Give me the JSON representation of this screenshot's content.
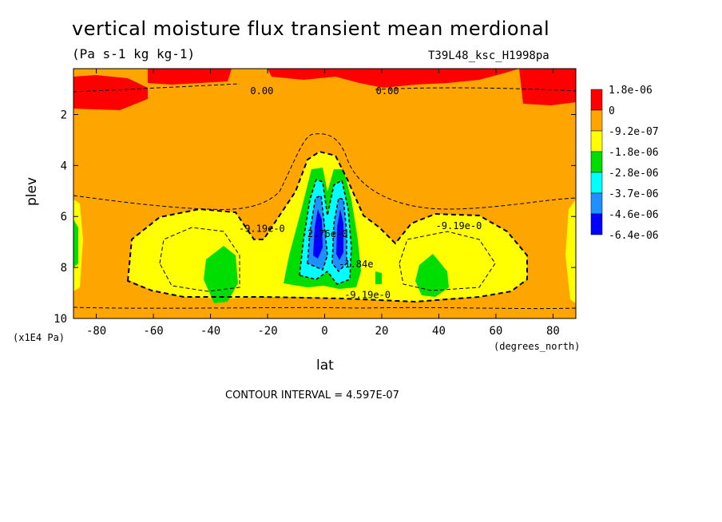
{
  "chart_data": {
    "type": "heatmap",
    "title": "vertical moisture flux transient mean merdional",
    "subtitle": "(Pa s-1 kg kg-1)",
    "run_label": "T39L48_ksc_H1998pa",
    "xlabel": "lat",
    "x_units": "(degrees_north)",
    "ylabel": "plev",
    "y_units": "(x1E4 Pa)",
    "xlim": [
      -88,
      88
    ],
    "ylim": [
      10,
      0.2
    ],
    "x_ticks": [
      -80,
      -60,
      -40,
      -20,
      0,
      20,
      40,
      60,
      80
    ],
    "x_tick_labels": [
      "-80",
      "-60",
      "-40",
      "-20",
      "0",
      "20",
      "40",
      "60",
      "80"
    ],
    "y_ticks": [
      2,
      4,
      6,
      8,
      10
    ],
    "y_tick_labels": [
      "2",
      "4",
      "6",
      "8",
      "10"
    ],
    "contour_interval_label": "CONTOUR INTERVAL = 4.597E-07",
    "legend": {
      "placement": "right",
      "labels": [
        "1.8e-06",
        "0",
        "-9.2e-07",
        "-1.8e-06",
        "-2.8e-06",
        "-3.7e-06",
        "-4.6e-06",
        "-6.4e-06"
      ],
      "colors": [
        "#ff0000",
        "#ffa500",
        "#ffff00",
        "#00dd00",
        "#00ffff",
        "#1e90ff",
        "#0000ff"
      ]
    },
    "contour_labels": [
      {
        "text": "0.00",
        "lat": -22,
        "plev": 1.2
      },
      {
        "text": "0.00",
        "lat": 22,
        "plev": 1.2
      },
      {
        "text": "-9.19e-0",
        "lat": -22,
        "plev": 6.6
      },
      {
        "text": "-9.19e-0",
        "lat": 47,
        "plev": 6.5
      },
      {
        "text": "-9.19e-0",
        "lat": 15,
        "plev": 9.2
      },
      {
        "text": "-2.76e-0",
        "lat": 0,
        "plev": 6.8
      },
      {
        "text": "-1.84e",
        "lat": 11,
        "plev": 8.0
      }
    ]
  }
}
